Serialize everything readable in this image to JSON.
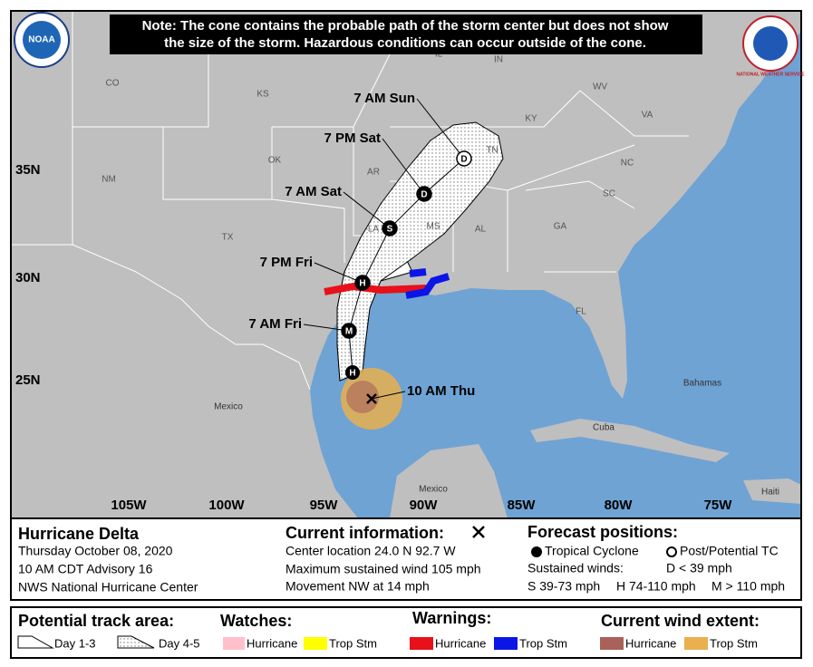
{
  "note": [
    "Note: The cone contains the probable path of the storm center but does not show",
    "the size of the storm. Hazardous conditions can occur outside of the cone."
  ],
  "logos": {
    "noaa": "NOAA",
    "nws": "NATIONAL WEATHER SERVICE"
  },
  "map": {
    "state_labels": [
      "CO",
      "KS",
      "OK",
      "TX",
      "NM",
      "AR",
      "LA",
      "MS",
      "AL",
      "TN",
      "KY",
      "GA",
      "SC",
      "NC",
      "VA",
      "IL",
      "IN",
      "OH",
      "WV",
      "FL"
    ],
    "place_labels": [
      "Mexico",
      "Mexico",
      "Bahamas",
      "Cuba",
      "Haiti"
    ],
    "lat_labels": [
      "35N",
      "30N",
      "25N"
    ],
    "lon_labels": [
      "105W",
      "100W",
      "95W",
      "90W",
      "85W",
      "80W",
      "75W"
    ]
  },
  "forecast_points": [
    {
      "label": "10 AM Thu",
      "symbol": ""
    },
    {
      "label": "7 AM Fri",
      "symbol": "M"
    },
    {
      "label": "7 PM Fri",
      "symbol": "H"
    },
    {
      "label": "7 AM Sat",
      "symbol": "S"
    },
    {
      "label": "7 PM Sat",
      "symbol": "D"
    },
    {
      "label": "7 AM Sun",
      "symbol": "D"
    }
  ],
  "extra_point_symbol": "H",
  "info": {
    "storm": [
      "Hurricane Delta",
      "Thursday October 08, 2020",
      "10 AM CDT Advisory 16",
      "NWS National Hurricane Center"
    ],
    "current_title": "Current information:",
    "current": [
      "Center location 24.0 N 92.7 W",
      "Maximum sustained wind 105 mph",
      "Movement NW at 14 mph"
    ],
    "forecast_title": "Forecast positions:",
    "forecast_types": [
      "Tropical Cyclone",
      "Post/Potential TC"
    ],
    "winds_title": "Sustained winds:",
    "winds": [
      "D < 39 mph",
      "S 39-73 mph",
      "H 74-110 mph",
      "M > 110 mph"
    ]
  },
  "legend": {
    "track_title": "Potential track area:",
    "track": [
      "Day 1-3",
      "Day 4-5"
    ],
    "watches_title": "Watches:",
    "watches": [
      "Hurricane",
      "Trop Stm"
    ],
    "warnings_title": "Warnings:",
    "warnings": [
      "Hurricane",
      "Trop Stm"
    ],
    "wind_title": "Current wind extent:",
    "wind": [
      "Hurricane",
      "Trop Stm"
    ]
  }
}
